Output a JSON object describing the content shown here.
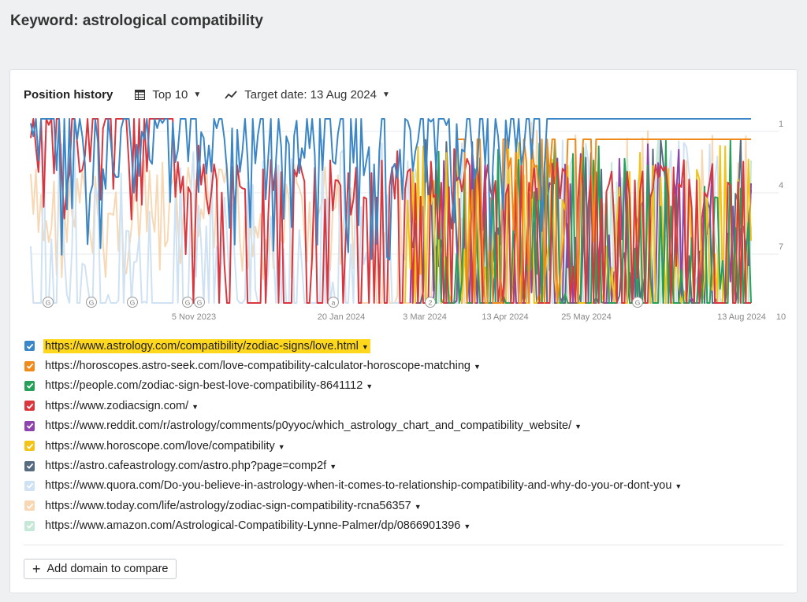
{
  "page": {
    "title": "Keyword: astrological compatibility"
  },
  "toolbar": {
    "title": "Position history",
    "top_label": "Top 10",
    "target_label": "Target date: 13 Aug 2024"
  },
  "chart_data": {
    "type": "line",
    "y_axis": {
      "ticks": [
        "1",
        "4",
        "7",
        "10"
      ],
      "reversed": true,
      "ylim": [
        1,
        10
      ]
    },
    "x_axis": {
      "ticks": [
        "5 Nov 2023",
        "20 Jan 2024",
        "3 Mar 2024",
        "13 Apr 2024",
        "25 May 2024",
        "13 Aug 2024"
      ]
    },
    "annotations": [
      {
        "label": "G"
      },
      {
        "label": "G"
      },
      {
        "label": "G"
      },
      {
        "label": "G"
      },
      {
        "label": "G"
      },
      {
        "label": "a"
      },
      {
        "label": "2"
      },
      {
        "label": "G"
      }
    ],
    "grid": true
  },
  "series": [
    {
      "url": "https://www.astrology.com/compatibility/zodiac-signs/love.html",
      "color": "#3b86c6",
      "checked": true,
      "highlight": true
    },
    {
      "url": "https://horoscopes.astro-seek.com/love-compatibility-calculator-horoscope-matching",
      "color": "#ef8a1b",
      "checked": true
    },
    {
      "url": "https://people.com/zodiac-sign-best-love-compatibility-8641112",
      "color": "#27a05a",
      "checked": true
    },
    {
      "url": "https://www.zodiacsign.com/",
      "color": "#d9363e",
      "checked": true
    },
    {
      "url": "https://www.reddit.com/r/astrology/comments/p0yyoc/which_astrology_chart_and_compatibility_website/",
      "color": "#8e44ad",
      "checked": true
    },
    {
      "url": "https://www.horoscope.com/love/compatibility",
      "color": "#f2c318",
      "checked": true
    },
    {
      "url": "https://astro.cafeastrology.com/astro.php?page=comp2f",
      "color": "#566a80",
      "checked": true
    },
    {
      "url": "https://www.quora.com/Do-you-believe-in-astrology-when-it-comes-to-relationship-compatibility-and-why-do-you-or-dont-you",
      "color": "#cfe2f3",
      "checked": true
    },
    {
      "url": "https://www.today.com/life/astrology/zodiac-sign-compatibility-rcna56357",
      "color": "#f8d8b4",
      "checked": true
    },
    {
      "url": "https://www.amazon.com/Astrological-Compatibility-Lynne-Palmer/dp/0866901396",
      "color": "#c6e8d6",
      "checked": true
    }
  ],
  "add_button": {
    "label": "Add domain to compare"
  }
}
